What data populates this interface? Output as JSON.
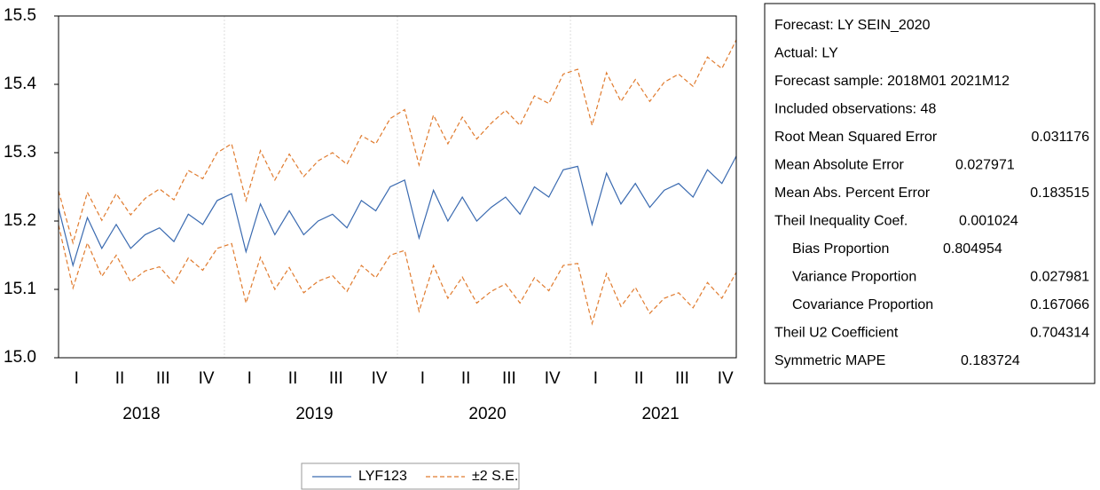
{
  "chart_data": {
    "type": "line",
    "categories": [
      null,
      "I",
      null,
      null,
      "II",
      null,
      null,
      "III",
      null,
      null,
      "IV",
      null,
      null,
      "I",
      null,
      null,
      "II",
      null,
      null,
      "III",
      null,
      null,
      "IV",
      null,
      null,
      "I",
      null,
      null,
      "II",
      null,
      null,
      "III",
      null,
      null,
      "IV",
      null,
      null,
      "I",
      null,
      null,
      "II",
      null,
      null,
      "III",
      null,
      null,
      "IV",
      null
    ],
    "years": [
      "2018",
      "2019",
      "2020",
      "2021"
    ],
    "series": [
      {
        "name": "LYF123",
        "color": "#3a6ab0",
        "values": [
          15.219,
          15.135,
          15.205,
          15.16,
          15.195,
          15.16,
          15.18,
          15.19,
          15.17,
          15.21,
          15.195,
          15.23,
          15.24,
          15.155,
          15.225,
          15.18,
          15.215,
          15.18,
          15.2,
          15.21,
          15.19,
          15.23,
          15.215,
          15.25,
          15.26,
          15.175,
          15.245,
          15.2,
          15.235,
          15.2,
          15.22,
          15.235,
          15.21,
          15.25,
          15.235,
          15.275,
          15.28,
          15.195,
          15.27,
          15.225,
          15.255,
          15.22,
          15.245,
          15.255,
          15.235,
          15.275,
          15.255,
          15.295
        ]
      },
      {
        "name": "±2 S.E.",
        "color": "#e07b2e",
        "dashed": true,
        "values": [
          15.244,
          15.168,
          15.242,
          15.201,
          15.24,
          15.209,
          15.233,
          15.247,
          15.231,
          15.274,
          15.262,
          15.3,
          15.313,
          15.23,
          15.303,
          15.26,
          15.298,
          15.265,
          15.288,
          15.3,
          15.283,
          15.325,
          15.313,
          15.35,
          15.363,
          15.282,
          15.355,
          15.313,
          15.352,
          15.32,
          15.343,
          15.362,
          15.34,
          15.383,
          15.372,
          15.415,
          15.422,
          15.34,
          15.417,
          15.375,
          15.407,
          15.375,
          15.403,
          15.415,
          15.397,
          15.44,
          15.423,
          15.465
        ],
        "lower": [
          15.194,
          15.102,
          15.168,
          15.119,
          15.15,
          15.111,
          15.127,
          15.133,
          15.109,
          15.146,
          15.128,
          15.16,
          15.167,
          15.08,
          15.147,
          15.1,
          15.132,
          15.095,
          15.112,
          15.12,
          15.097,
          15.135,
          15.117,
          15.15,
          15.157,
          15.068,
          15.135,
          15.087,
          15.118,
          15.08,
          15.097,
          15.108,
          15.08,
          15.117,
          15.098,
          15.135,
          15.138,
          15.05,
          15.123,
          15.075,
          15.103,
          15.065,
          15.087,
          15.095,
          15.073,
          15.11,
          15.087,
          15.125
        ]
      }
    ],
    "ylim": [
      15.0,
      15.5
    ],
    "yticks": [
      {
        "value": 15.0,
        "label": "15.0"
      },
      15.1,
      15.2,
      15.3,
      15.4,
      15.5
    ]
  },
  "stats": {
    "header": [
      "Forecast: LY SEIN_2020",
      "Actual: LY",
      "Forecast sample: 2018M01 2021M12",
      "Included observations: 48"
    ],
    "rows": [
      [
        "Root Mean Squared Error",
        0.031176
      ],
      [
        "Mean Absolute Error",
        0.027971
      ],
      [
        "Mean Abs. Percent Error",
        0.183515
      ],
      [
        "Theil Inequality Coef.",
        0.001024
      ],
      [
        "Bias Proportion",
        0.804954
      ],
      [
        "Variance Proportion",
        0.027981
      ],
      [
        "Covariance Proportion",
        0.167066
      ],
      [
        "Theil U2 Coefficient",
        0.704314
      ],
      [
        "Symmetric MAPE",
        0.183724
      ]
    ]
  }
}
